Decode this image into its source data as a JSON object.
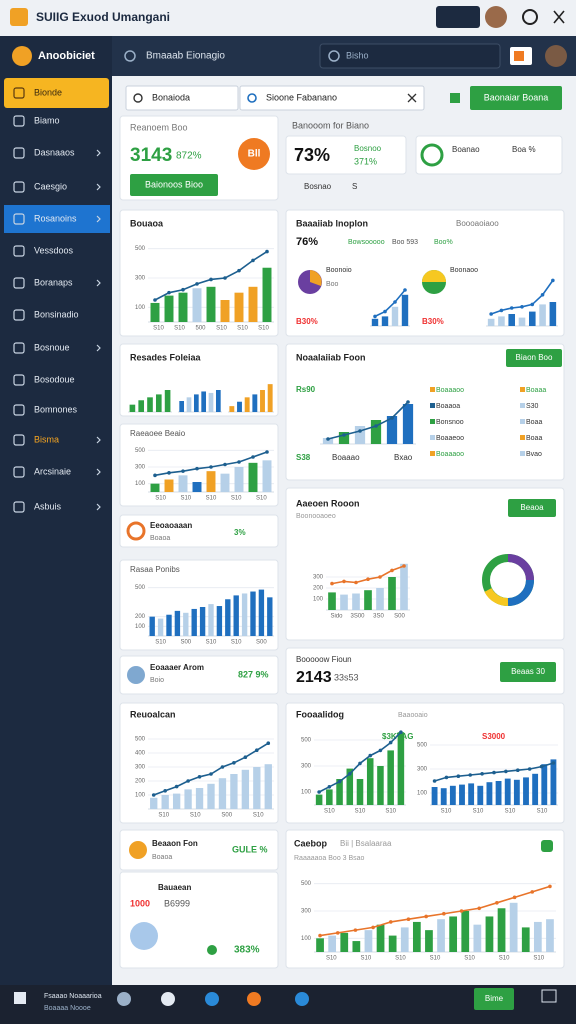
{
  "window": {
    "title": "SUIIG Exuod Umangani"
  },
  "header": {
    "brand": "Anoobiciet",
    "section": "Bmaaab Eionagio",
    "search": "Bisho"
  },
  "sidebar": {
    "items": [
      "Bionde",
      "Biamo",
      "Dasnaaos",
      "Caesgio",
      "Rosanoins",
      "Vessdoos",
      "Boranaps",
      "Bonsinadio",
      "Bosnoue",
      "Bosodoue",
      "Bomnones",
      "Bisma",
      "Arcsinaie",
      "Asbuis"
    ]
  },
  "toolbar": {
    "select": "Bonaioda",
    "search": "Sioone Fabanano",
    "button": "Baonaiar Boana"
  },
  "cards": [
    {
      "texts": [
        "Reanoem Boo",
        "3143",
        "872%",
        "Bll",
        "Baionoos Bioo"
      ]
    },
    {
      "texts": [
        "Banooom for Biano",
        "73%",
        "Bosnoo",
        "371%",
        "Bosnao",
        "S"
      ]
    },
    {
      "texts": [
        "Boanao",
        "Boa %"
      ]
    },
    {
      "texts": [
        "Bouaoa"
      ],
      "charts": [
        {
          "ylim": [
            0,
            600
          ],
          "ticks": [
            500,
            300,
            100
          ],
          "xlabels": [
            "S10",
            "S10",
            "500",
            "S10",
            "S10",
            "S10"
          ],
          "bars": [
            130,
            180,
            200,
            230,
            240,
            150,
            200,
            240,
            370
          ],
          "colors": [
            "#2ea043",
            "#2ea043",
            "#2ea043",
            "#b6d0e8",
            "#2ea043",
            "#f0a125",
            "#f0a125",
            "#f0a125",
            "#2ea043"
          ],
          "line": [
            150,
            200,
            220,
            260,
            290,
            300,
            350,
            420,
            480
          ],
          "line_color": "#1d5f8f"
        }
      ]
    },
    {
      "texts": [
        "Baaaiiab lnoplon",
        "76%",
        "Bowsooooo",
        "Boo 593",
        "Boo%",
        "Boooaoiaoo",
        "Boonoio",
        "Boo",
        "Boonaoo",
        "B30%",
        "B30%"
      ],
      "charts": [
        {
          "ylim": [
            0,
            600
          ],
          "bars": [
            60,
            80,
            160,
            260
          ],
          "colors": [
            "#1f6fbf",
            "#1f6fbf",
            "#b6d0e8",
            "#1f6fbf"
          ],
          "line": [
            80,
            120,
            200,
            300
          ],
          "line_color": "#1f6fbf"
        },
        {
          "ylim": [
            0,
            600
          ],
          "bars": [
            60,
            80,
            100,
            70,
            120,
            180,
            200
          ],
          "colors": [
            "#b6d0e8",
            "#b6d0e8",
            "#1f6fbf",
            "#b6d0e8",
            "#1f6fbf",
            "#b6d0e8",
            "#1f6fbf"
          ],
          "line": [
            100,
            130,
            150,
            160,
            180,
            260,
            380
          ],
          "line_color": "#1f6fbf"
        }
      ]
    },
    {
      "texts": [
        "Resades Foleiaa"
      ],
      "charts": [
        {
          "ylim": [
            0,
            600
          ],
          "bars": [
            100,
            160,
            200,
            240,
            300
          ],
          "colors": [
            "#2ea043",
            "#2ea043",
            "#2ea043",
            "#2ea043",
            "#2ea043"
          ]
        },
        {
          "ylim": [
            0,
            600
          ],
          "bars": [
            150,
            200,
            240,
            280,
            260,
            300
          ],
          "colors": [
            "#1f6fbf",
            "#b6d0e8",
            "#1f6fbf",
            "#1f6fbf",
            "#b6d0e8",
            "#1f6fbf"
          ]
        },
        {
          "ylim": [
            0,
            600
          ],
          "bars": [
            80,
            140,
            200,
            240,
            300,
            380
          ],
          "colors": [
            "#f0a125",
            "#1f6fbf",
            "#f0a125",
            "#1f6fbf",
            "#f0a125",
            "#f0a125"
          ]
        }
      ]
    },
    {
      "texts": [
        "Raeaoee Beaio"
      ],
      "charts": [
        {
          "ylim": [
            0,
            600
          ],
          "ticks": [
            500,
            300,
            100
          ],
          "xlabels": [
            "S10",
            "S10",
            "S10",
            "S10",
            "S10"
          ],
          "bars": [
            100,
            150,
            200,
            120,
            250,
            220,
            300,
            350,
            380
          ],
          "colors": [
            "#2ea043",
            "#f0a125",
            "#b6d0e8",
            "#1f6fbf",
            "#f0a125",
            "#b6d0e8",
            "#b6d0e8",
            "#2ea043",
            "#b6d0e8"
          ],
          "line": [
            200,
            230,
            250,
            280,
            300,
            330,
            360,
            420,
            480
          ],
          "line_color": "#1d5f8f"
        }
      ]
    },
    {
      "texts": [
        "Eeoaoaaan",
        "Boaoa",
        "3%"
      ]
    },
    {
      "texts": [
        "Rasaa Ponibs"
      ],
      "charts": [
        {
          "ylim": [
            0,
            600
          ],
          "ticks": [
            500,
            200,
            100
          ],
          "xlabels": [
            "S10",
            "S00",
            "S10",
            "S10",
            "S00"
          ],
          "bars": [
            200,
            180,
            220,
            260,
            240,
            280,
            300,
            330,
            310,
            380,
            420,
            440,
            460,
            480,
            400
          ],
          "colors": [
            "#1f6fbf",
            "#b6d0e8",
            "#1f6fbf",
            "#1f6fbf",
            "#b6d0e8",
            "#1f6fbf",
            "#1f6fbf",
            "#b6d0e8",
            "#1f6fbf",
            "#1f6fbf",
            "#1f6fbf",
            "#b6d0e8",
            "#1f6fbf",
            "#1f6fbf",
            "#1f6fbf"
          ]
        }
      ]
    },
    {
      "texts": [
        "Eoaaaer Arom",
        "Boio",
        "827 9%"
      ]
    },
    {
      "texts": [
        "Reuoalcan"
      ],
      "charts": [
        {
          "ylim": [
            0,
            600
          ],
          "ticks": [
            500,
            400,
            300,
            200,
            100
          ],
          "xlabels": [
            "S10",
            "S10",
            "S00",
            "S10"
          ],
          "bars": [
            80,
            100,
            110,
            140,
            150,
            180,
            220,
            250,
            280,
            300,
            320
          ],
          "colors": [
            "#b6d0e8",
            "#b6d0e8",
            "#b6d0e8",
            "#b6d0e8",
            "#b6d0e8",
            "#b6d0e8",
            "#b6d0e8",
            "#b6d0e8",
            "#b6d0e8",
            "#b6d0e8",
            "#b6d0e8"
          ],
          "line": [
            100,
            130,
            160,
            200,
            230,
            250,
            300,
            330,
            370,
            420,
            470
          ],
          "line_color": "#1d5f8f"
        }
      ]
    },
    {
      "texts": [
        "Beaaon Fon",
        "GULE %",
        "Boaoa"
      ]
    },
    {
      "texts": [
        "Bauaean",
        "1000",
        "B6999",
        "383%"
      ]
    },
    {
      "texts": [
        "Noaalaiiab Foon",
        "Biaon Boo",
        "Rs90",
        "S38",
        "Boaaao",
        "Bxao",
        "Boaaaoo",
        "Boaaoa",
        "Bonsnoo",
        "Boaaeoo",
        "Boaaaoo",
        "Boaaa",
        "S30",
        "Boaa",
        "Boaa",
        "Bvao"
      ],
      "charts": [
        {
          "ylim": [
            0,
            600
          ],
          "bars": [
            60,
            120,
            180,
            240,
            280,
            400
          ],
          "colors": [
            "#b6d0e8",
            "#2ea043",
            "#b6d0e8",
            "#2ea043",
            "#1f6fbf",
            "#1f6fbf"
          ],
          "line": [
            50,
            90,
            130,
            180,
            260,
            420
          ],
          "line_color": "#1d5f8f"
        }
      ]
    },
    {
      "texts": [
        "Aaeoen Rooon",
        "Boonooaoeo",
        "Beaoa"
      ],
      "charts": [
        {
          "ylim": [
            0,
            600
          ],
          "ticks": [
            300,
            200,
            100
          ],
          "xlabels": [
            "Sido",
            "3S00",
            "3S0",
            "S00"
          ],
          "bars": [
            160,
            140,
            150,
            180,
            200,
            300,
            420
          ],
          "colors": [
            "#2ea043",
            "#b6d0e8",
            "#b6d0e8",
            "#2ea043",
            "#b6d0e8",
            "#2ea043",
            "#b6d0e8"
          ],
          "line": [
            240,
            260,
            250,
            280,
            300,
            360,
            400
          ],
          "line_color": "#e8742a"
        }
      ]
    },
    {
      "texts": [
        "Booooow Fioun",
        "2143",
        "33s53",
        "Beaas 30"
      ]
    },
    {
      "texts": [
        "Fooaalidog",
        "Baaooaio",
        "$3KVAG",
        "S3000"
      ],
      "charts": [
        {
          "ylim": [
            0,
            600
          ],
          "ticks": [
            500,
            300,
            100
          ],
          "xlabels": [
            "S10",
            "S10",
            "S10"
          ],
          "bars": [
            80,
            120,
            200,
            280,
            200,
            360,
            300,
            420,
            560
          ],
          "colors": [
            "#2ea043",
            "#2ea043",
            "#2ea043",
            "#2ea043",
            "#2ea043",
            "#2ea043",
            "#2ea043",
            "#2ea043",
            "#2ea043"
          ],
          "line": [
            100,
            140,
            180,
            240,
            320,
            380,
            420,
            480,
            560
          ],
          "line_color": "#1d5f8f"
        },
        {
          "ylim": [
            0,
            600
          ],
          "ticks": [
            500,
            300,
            100
          ],
          "xlabels": [
            "S10",
            "S10",
            "S10",
            "S10"
          ],
          "bars": [
            150,
            140,
            160,
            170,
            180,
            160,
            190,
            200,
            220,
            210,
            230,
            260,
            340,
            380
          ],
          "colors": [
            "#1f6fbf",
            "#1f6fbf",
            "#1f6fbf",
            "#1f6fbf",
            "#1f6fbf",
            "#1f6fbf",
            "#1f6fbf",
            "#1f6fbf",
            "#1f6fbf",
            "#1f6fbf",
            "#1f6fbf",
            "#1f6fbf",
            "#1f6fbf",
            "#1f6fbf"
          ],
          "line": [
            200,
            230,
            240,
            250,
            260,
            270,
            280,
            290,
            300,
            320,
            350
          ],
          "line_color": "#1d5f8f"
        }
      ]
    },
    {
      "texts": [
        "Caebop",
        "Bii | Bsalaaraa",
        "Raaaaaoa Boo 3 Bsao"
      ],
      "charts": [
        {
          "ylim": [
            0,
            600
          ],
          "ticks": [
            500,
            300,
            100
          ],
          "xlabels": [
            "S10",
            "S10",
            "S10",
            "S10",
            "S10",
            "S10",
            "S10"
          ],
          "bars": [
            100,
            120,
            140,
            80,
            160,
            200,
            120,
            180,
            220,
            160,
            240,
            260,
            300,
            200,
            260,
            320,
            360,
            180,
            220,
            240
          ],
          "colors": [
            "#2ea043",
            "#b6d0e8",
            "#2ea043",
            "#2ea043",
            "#b6d0e8",
            "#2ea043",
            "#2ea043",
            "#b6d0e8",
            "#2ea043",
            "#2ea043",
            "#b6d0e8",
            "#2ea043",
            "#2ea043",
            "#b6d0e8",
            "#2ea043",
            "#2ea043",
            "#b6d0e8",
            "#2ea043",
            "#b6d0e8",
            "#b6d0e8"
          ],
          "line": [
            120,
            140,
            160,
            180,
            220,
            240,
            260,
            280,
            300,
            320,
            360,
            400,
            440,
            480
          ],
          "line_color": "#e8742a"
        }
      ]
    }
  ],
  "taskbar": {
    "label": "Fsaaao Noaaarioa",
    "sub": "Boaaaa Noooe",
    "button": "Bime"
  }
}
